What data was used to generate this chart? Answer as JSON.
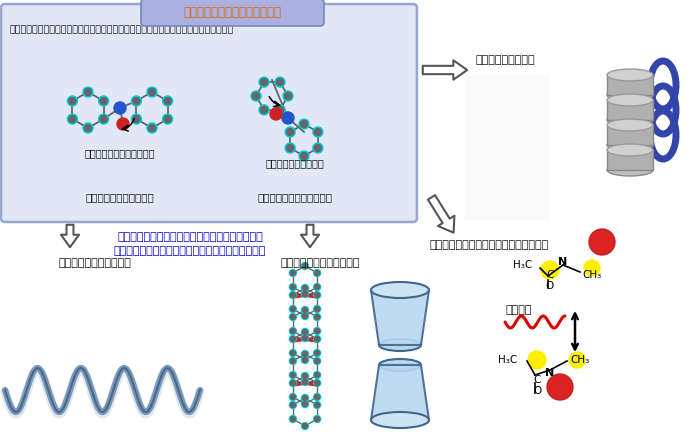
{
  "title": "有機化合物の三次元構造の制御",
  "subtitle": "結晶や溶液中での個々の分子の構造やその動き、分子同士の相互作用などを制御する。",
  "label_trans": "アミド結合（トランス型）",
  "label_cis": "アミド結合（シス型）",
  "label_extended": "伸びた分子構造をつくる",
  "label_bent": "折れ曲がった構造をつくる",
  "middle_text_line1": "これらの構造を使って、面白い構造を創り出す。",
  "middle_text_line2": "材料科学や医薬化学などの分野での機能を検討中！",
  "ex1_title": "（例１）らせん状の分子",
  "ex2_title": "（例２）カプセル状の分子",
  "ex3_title": "（例３）層状の分子",
  "ex4_title": "（例４）環境に応じて構造を変える分子",
  "stimuli_label": "外部刺激",
  "bg_color": "#ffffff",
  "box_fill": "#dde3f5",
  "box_border": "#8899cc",
  "title_bg": "#aab0e0",
  "title_color": "#dd6600",
  "middle_text_color": "#0000cc",
  "helix_color1": "#7799bb",
  "helix_color2": "#334466",
  "stimuli_color": "#dd0000",
  "gray_atom": "#666666",
  "cyan_atom": "#00ccdd",
  "blue_atom": "#2255cc",
  "red_atom": "#cc2222"
}
